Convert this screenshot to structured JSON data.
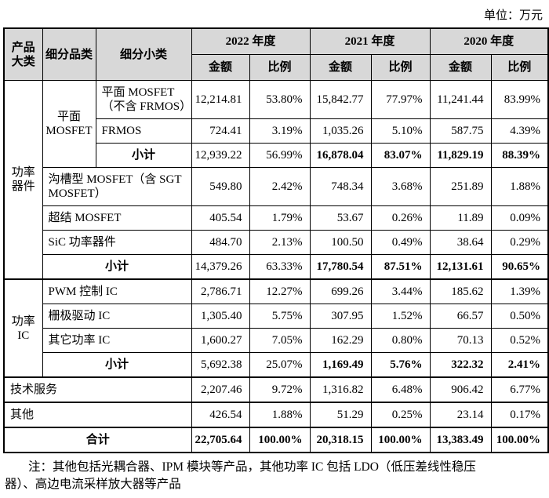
{
  "unit_label": "单位：万元",
  "table": {
    "header_rows": [
      {
        "cells": [
          {
            "t": "产品大类",
            "rs": 2
          },
          {
            "t": "细分品类",
            "rs": 2
          },
          {
            "t": "细分小类",
            "rs": 2
          },
          {
            "t": "2022 年度",
            "cs": 2
          },
          {
            "t": "2021 年度",
            "cs": 2
          },
          {
            "t": "2020 年度",
            "cs": 2
          }
        ]
      },
      {
        "cells": [
          {
            "t": "金额"
          },
          {
            "t": "比例"
          },
          {
            "t": "金额"
          },
          {
            "t": "比例"
          },
          {
            "t": "金额"
          },
          {
            "t": "比例"
          }
        ]
      }
    ],
    "rows": [
      {
        "cells": [
          {
            "t": "功率器件",
            "rs": 7,
            "cls": "center"
          },
          {
            "t": "平面 MOSFET",
            "rs": 3,
            "cls": "center"
          },
          {
            "t": "平面 MOSFET（不含 FRMOS）",
            "cls": "left"
          },
          {
            "t": "12,214.81",
            "cls": "num"
          },
          {
            "t": "53.80%",
            "cls": "num"
          },
          {
            "t": "15,842.77",
            "cls": "num"
          },
          {
            "t": "77.97%",
            "cls": "num"
          },
          {
            "t": "11,241.44",
            "cls": "num"
          },
          {
            "t": "83.99%",
            "cls": "num"
          }
        ]
      },
      {
        "cells": [
          {
            "t": "FRMOS",
            "cls": "left"
          },
          {
            "t": "724.41",
            "cls": "num"
          },
          {
            "t": "3.19%",
            "cls": "num"
          },
          {
            "t": "1,035.26",
            "cls": "num"
          },
          {
            "t": "5.10%",
            "cls": "num"
          },
          {
            "t": "587.75",
            "cls": "num"
          },
          {
            "t": "4.39%",
            "cls": "num"
          }
        ]
      },
      {
        "cells": [
          {
            "t": "小计",
            "cls": "center",
            "b": true
          },
          {
            "t": "12,939.22",
            "cls": "num"
          },
          {
            "t": "56.99%",
            "cls": "num"
          },
          {
            "t": "16,878.04",
            "cls": "num",
            "b": true
          },
          {
            "t": "83.07%",
            "cls": "num",
            "b": true
          },
          {
            "t": "11,829.19",
            "cls": "num",
            "b": true
          },
          {
            "t": "88.39%",
            "cls": "num",
            "b": true
          }
        ]
      },
      {
        "cells": [
          {
            "t": "沟槽型 MOSFET（含 SGT MOSFET）",
            "cs": 2,
            "cls": "left"
          },
          {
            "t": "549.80",
            "cls": "num"
          },
          {
            "t": "2.42%",
            "cls": "num"
          },
          {
            "t": "748.34",
            "cls": "num"
          },
          {
            "t": "3.68%",
            "cls": "num"
          },
          {
            "t": "251.89",
            "cls": "num"
          },
          {
            "t": "1.88%",
            "cls": "num"
          }
        ]
      },
      {
        "cells": [
          {
            "t": "超结 MOSFET",
            "cs": 2,
            "cls": "left"
          },
          {
            "t": "405.54",
            "cls": "num"
          },
          {
            "t": "1.79%",
            "cls": "num"
          },
          {
            "t": "53.67",
            "cls": "num"
          },
          {
            "t": "0.26%",
            "cls": "num"
          },
          {
            "t": "11.89",
            "cls": "num"
          },
          {
            "t": "0.09%",
            "cls": "num"
          }
        ]
      },
      {
        "cells": [
          {
            "t": "SiC 功率器件",
            "cs": 2,
            "cls": "left"
          },
          {
            "t": "484.70",
            "cls": "num"
          },
          {
            "t": "2.13%",
            "cls": "num"
          },
          {
            "t": "100.50",
            "cls": "num"
          },
          {
            "t": "0.49%",
            "cls": "num"
          },
          {
            "t": "38.64",
            "cls": "num"
          },
          {
            "t": "0.29%",
            "cls": "num"
          }
        ]
      },
      {
        "cells": [
          {
            "t": "小计",
            "cs": 2,
            "cls": "center",
            "b": true
          },
          {
            "t": "14,379.26",
            "cls": "num"
          },
          {
            "t": "63.33%",
            "cls": "num"
          },
          {
            "t": "17,780.54",
            "cls": "num",
            "b": true
          },
          {
            "t": "87.51%",
            "cls": "num",
            "b": true
          },
          {
            "t": "12,131.61",
            "cls": "num",
            "b": true
          },
          {
            "t": "90.65%",
            "cls": "num",
            "b": true
          }
        ]
      },
      {
        "sec": true,
        "cells": [
          {
            "t": "功率 IC",
            "rs": 4,
            "cls": "center"
          },
          {
            "t": "PWM 控制 IC",
            "cs": 2,
            "cls": "left"
          },
          {
            "t": "2,786.71",
            "cls": "num"
          },
          {
            "t": "12.27%",
            "cls": "num"
          },
          {
            "t": "699.26",
            "cls": "num"
          },
          {
            "t": "3.44%",
            "cls": "num"
          },
          {
            "t": "185.62",
            "cls": "num"
          },
          {
            "t": "1.39%",
            "cls": "num"
          }
        ]
      },
      {
        "cells": [
          {
            "t": "栅极驱动 IC",
            "cs": 2,
            "cls": "left"
          },
          {
            "t": "1,305.40",
            "cls": "num"
          },
          {
            "t": "5.75%",
            "cls": "num"
          },
          {
            "t": "307.95",
            "cls": "num"
          },
          {
            "t": "1.52%",
            "cls": "num"
          },
          {
            "t": "66.57",
            "cls": "num"
          },
          {
            "t": "0.50%",
            "cls": "num"
          }
        ]
      },
      {
        "cells": [
          {
            "t": "其它功率 IC",
            "cs": 2,
            "cls": "left"
          },
          {
            "t": "1,600.27",
            "cls": "num"
          },
          {
            "t": "7.05%",
            "cls": "num"
          },
          {
            "t": "162.29",
            "cls": "num"
          },
          {
            "t": "0.80%",
            "cls": "num"
          },
          {
            "t": "70.13",
            "cls": "num"
          },
          {
            "t": "0.52%",
            "cls": "num"
          }
        ]
      },
      {
        "cells": [
          {
            "t": "小计",
            "cs": 2,
            "cls": "center",
            "b": true
          },
          {
            "t": "5,692.38",
            "cls": "num"
          },
          {
            "t": "25.07%",
            "cls": "num"
          },
          {
            "t": "1,169.49",
            "cls": "num",
            "b": true
          },
          {
            "t": "5.76%",
            "cls": "num",
            "b": true
          },
          {
            "t": "322.32",
            "cls": "num",
            "b": true
          },
          {
            "t": "2.41%",
            "cls": "num",
            "b": true
          }
        ]
      },
      {
        "sec": true,
        "cells": [
          {
            "t": "技术服务",
            "cs": 3,
            "cls": "left"
          },
          {
            "t": "2,207.46",
            "cls": "num"
          },
          {
            "t": "9.72%",
            "cls": "num"
          },
          {
            "t": "1,316.82",
            "cls": "num"
          },
          {
            "t": "6.48%",
            "cls": "num"
          },
          {
            "t": "906.42",
            "cls": "num"
          },
          {
            "t": "6.77%",
            "cls": "num"
          }
        ]
      },
      {
        "sec": true,
        "cells": [
          {
            "t": "其他",
            "cs": 3,
            "cls": "left"
          },
          {
            "t": "426.54",
            "cls": "num"
          },
          {
            "t": "1.88%",
            "cls": "num"
          },
          {
            "t": "51.29",
            "cls": "num"
          },
          {
            "t": "0.25%",
            "cls": "num"
          },
          {
            "t": "23.14",
            "cls": "num"
          },
          {
            "t": "0.17%",
            "cls": "num"
          }
        ]
      },
      {
        "sec": true,
        "cells": [
          {
            "t": "合计",
            "cs": 3,
            "cls": "center",
            "b": true
          },
          {
            "t": "22,705.64",
            "cls": "num",
            "b": true
          },
          {
            "t": "100.00%",
            "cls": "num",
            "b": true
          },
          {
            "t": "20,318.15",
            "cls": "num",
            "b": true
          },
          {
            "t": "100.00%",
            "cls": "num",
            "b": true
          },
          {
            "t": "13,383.49",
            "cls": "num",
            "b": true
          },
          {
            "t": "100.00%",
            "cls": "num",
            "b": true
          }
        ]
      }
    ]
  },
  "note_lines": [
    "注：其他包括光耦合器、IPM 模块等产品，其他功率 IC 包括 LDO（低压差线性稳压",
    "器）、高边电流采样放大器等产品"
  ]
}
